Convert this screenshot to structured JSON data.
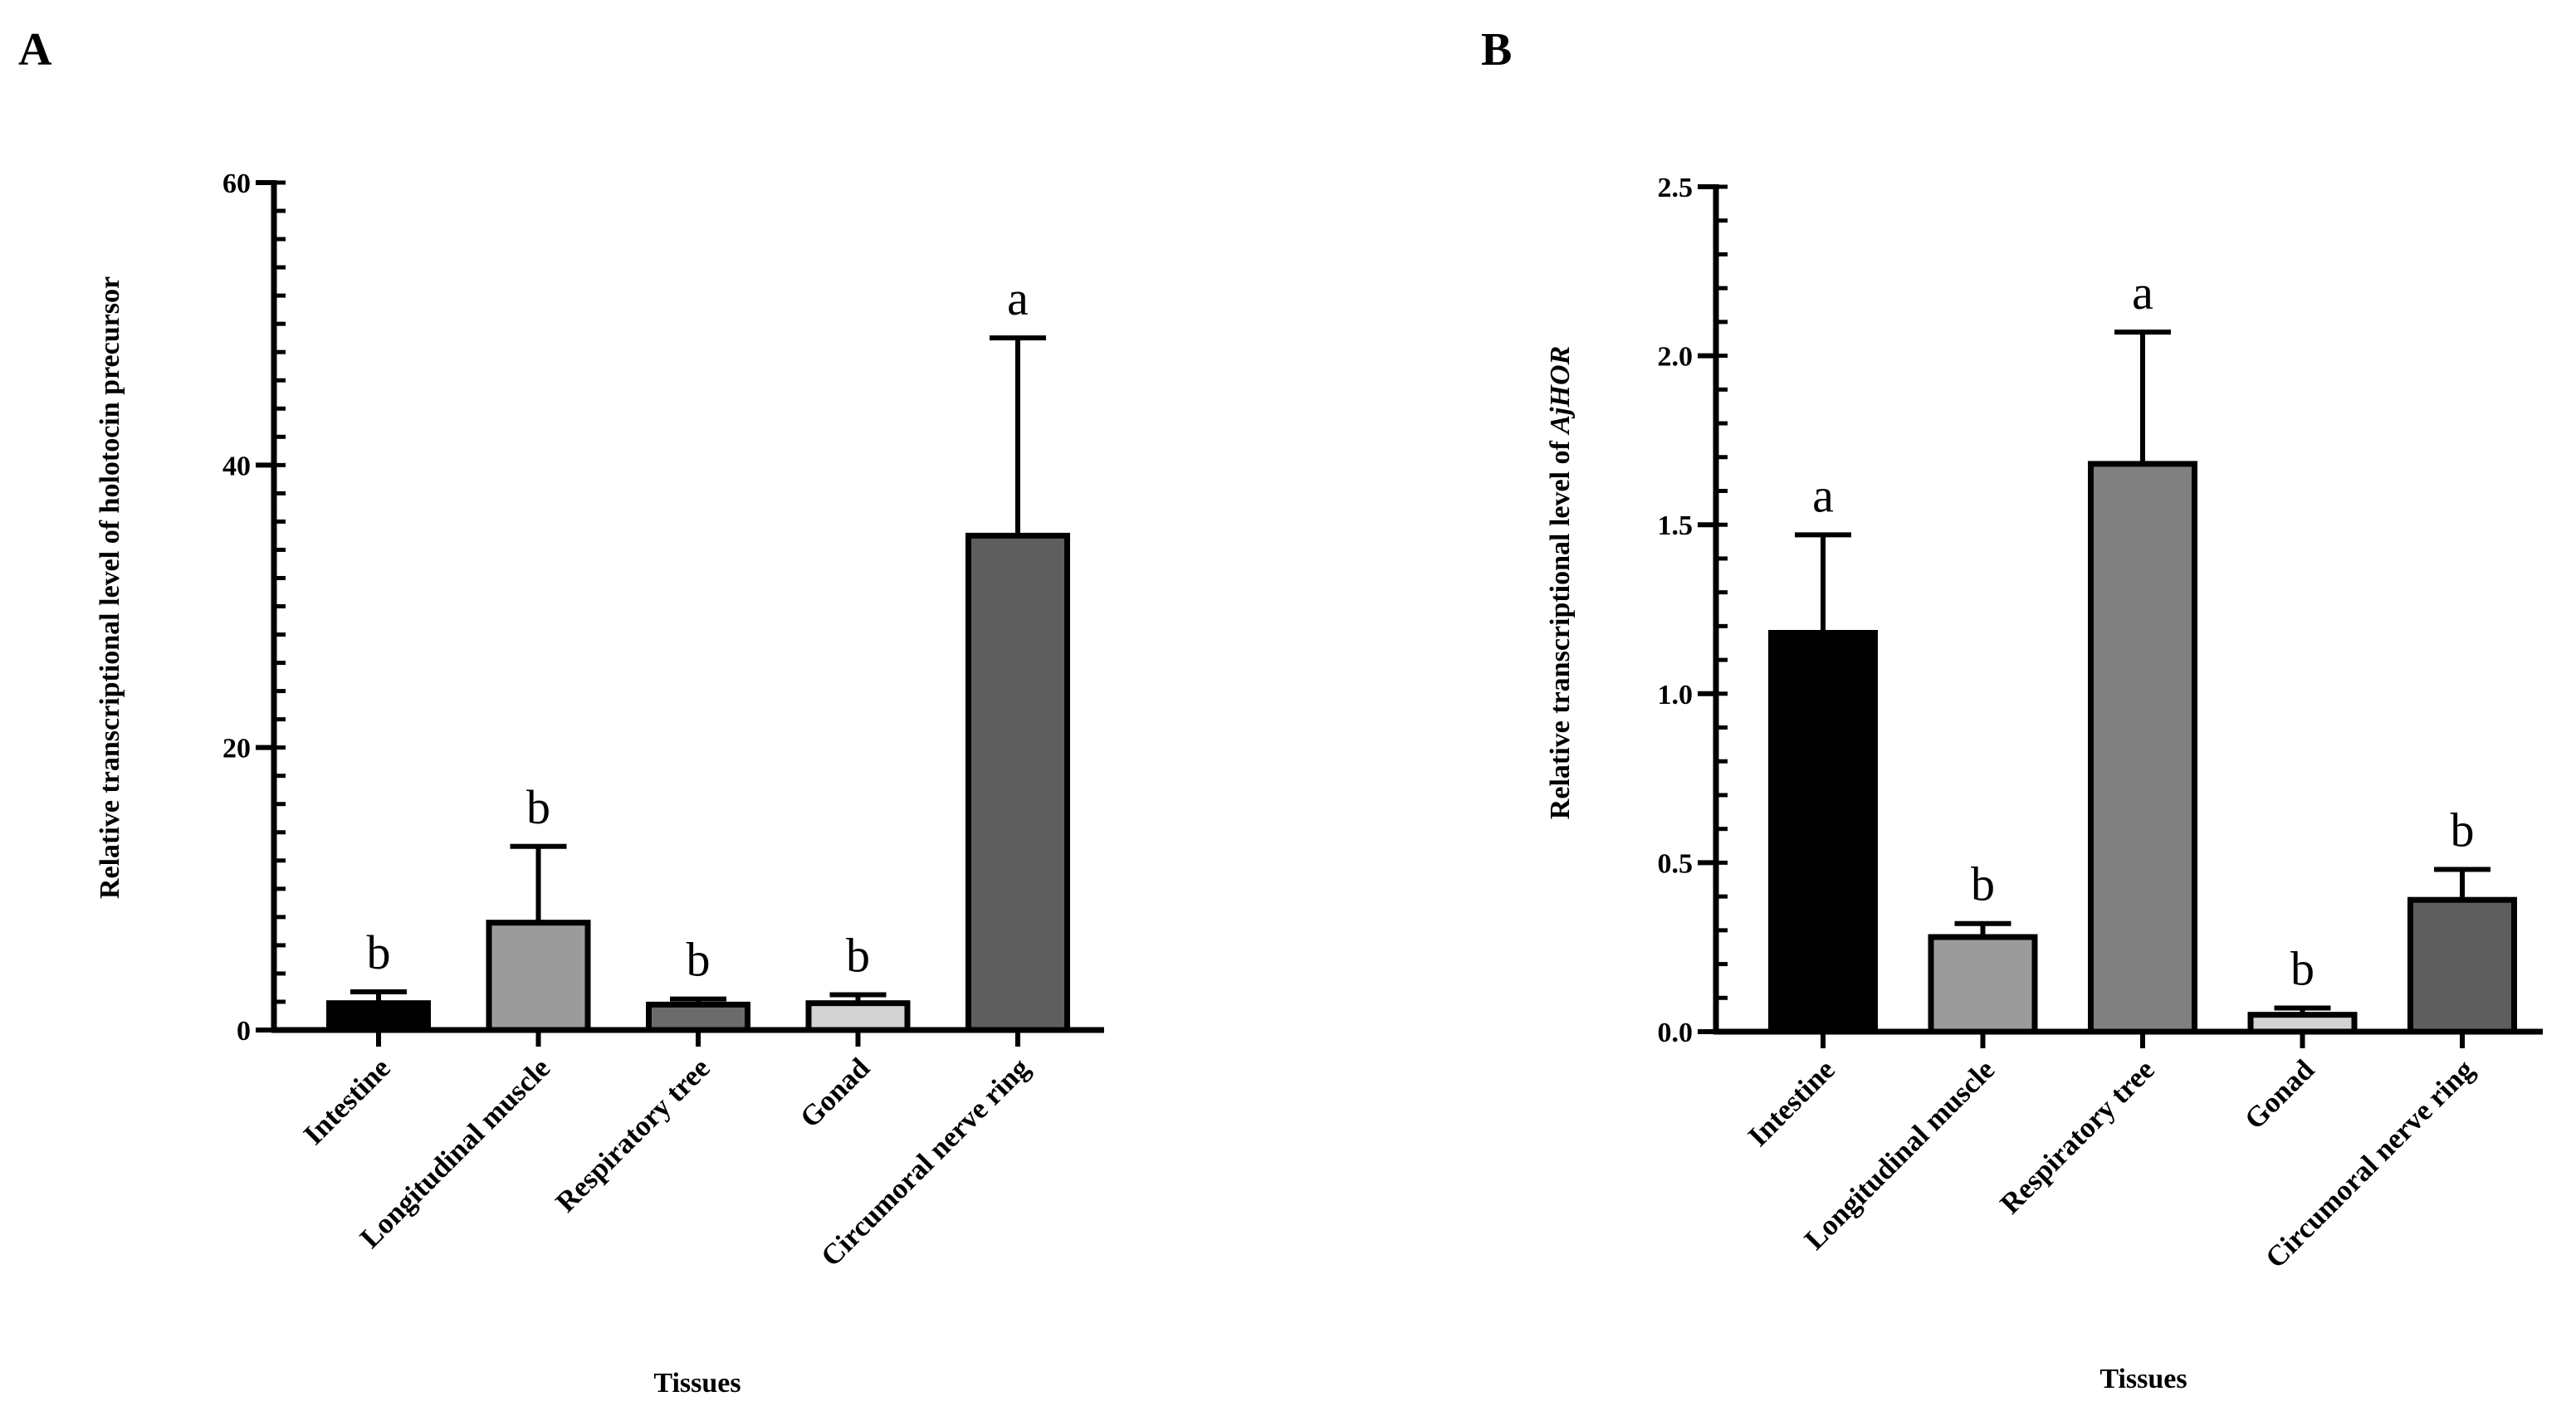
{
  "chart_data": [
    {
      "type": "bar",
      "panel": "A",
      "categories": [
        "Intestine",
        "Longitudinal muscle",
        "Respiratory tree",
        "Gonad",
        "Circumoral nerve ring"
      ],
      "values": [
        1.9,
        7.6,
        1.8,
        1.9,
        35.0
      ],
      "errors": [
        0.8,
        5.4,
        0.4,
        0.6,
        14.0
      ],
      "significance": [
        "b",
        "b",
        "b",
        "b",
        "a"
      ],
      "colors": [
        "#000000",
        "#9b9b9b",
        "#6b6b6b",
        "#d3d3d3",
        "#5e5e5e"
      ],
      "title": "",
      "xlabel": "Tissues",
      "ylabel": {
        "prefix": "Relative transcriptional level of holotocin precursor",
        "italic": ""
      },
      "ylim": [
        0,
        60
      ],
      "yticks": [
        0,
        20,
        40,
        60
      ],
      "ytick_labels": [
        "0",
        "20",
        "40",
        "60"
      ],
      "minor_step": 2
    },
    {
      "type": "bar",
      "panel": "B",
      "categories": [
        "Intestine",
        "Longitudinal muscle",
        "Respiratory tree",
        "Gonad",
        "Circumoral nerve ring"
      ],
      "values": [
        1.18,
        0.28,
        1.68,
        0.05,
        0.39
      ],
      "errors": [
        0.29,
        0.04,
        0.39,
        0.02,
        0.09
      ],
      "significance": [
        "a",
        "b",
        "a",
        "b",
        "b"
      ],
      "colors": [
        "#000000",
        "#9b9b9b",
        "#808080",
        "#d3d3d3",
        "#5e5e5e"
      ],
      "title": "",
      "xlabel": "Tissues",
      "ylabel": {
        "prefix": "Relative transcriptional level of ",
        "italic": "AjHOR"
      },
      "ylim": [
        0,
        2.5
      ],
      "yticks": [
        0,
        0.5,
        1.0,
        1.5,
        2.0,
        2.5
      ],
      "ytick_labels": [
        "0.0",
        "0.5",
        "1.0",
        "1.5",
        "2.0",
        "2.5"
      ],
      "minor_step": 0.1
    }
  ]
}
